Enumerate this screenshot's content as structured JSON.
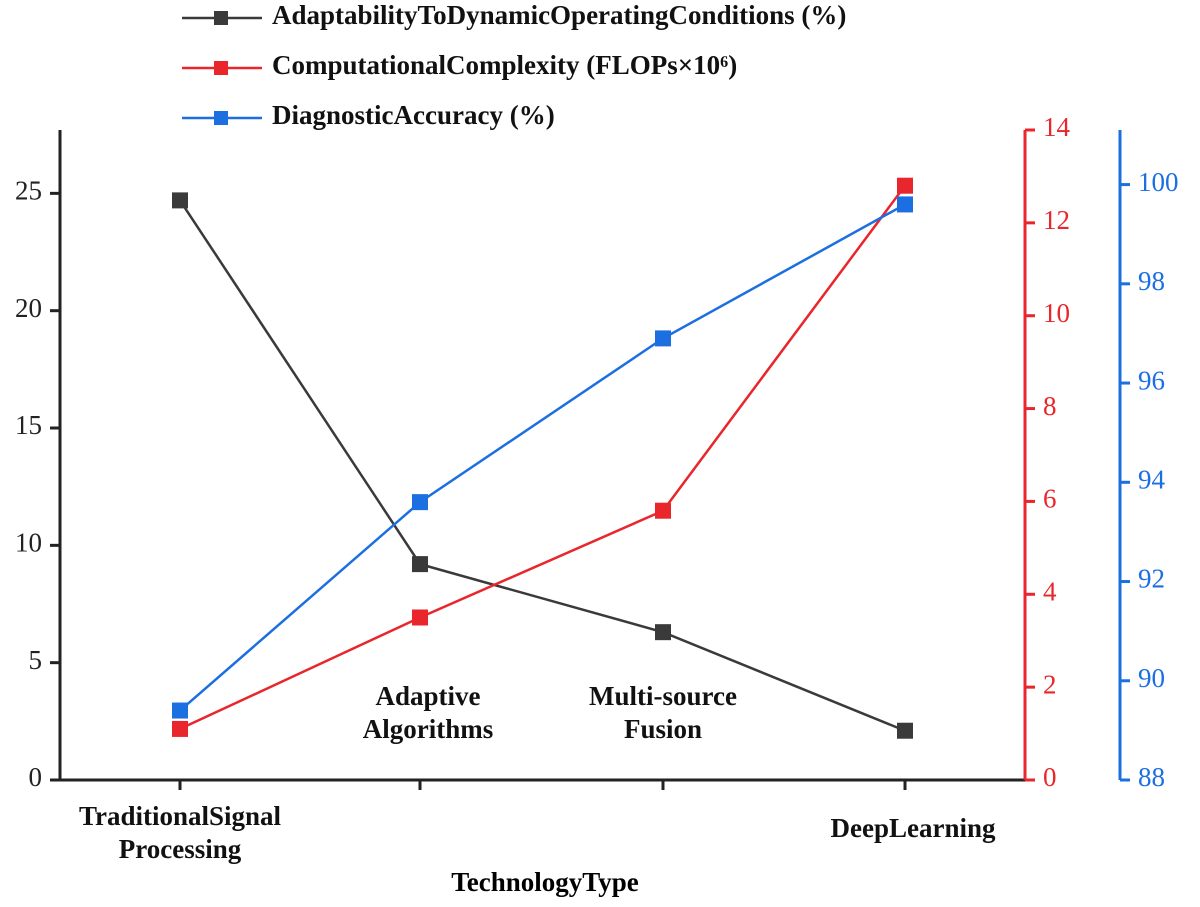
{
  "chart_data": {
    "type": "line",
    "x_label": "TechnologyType",
    "categories": [
      "TraditionalSignal Processing",
      "Adaptive Algorithms",
      "Multi-source Fusion",
      "DeepLearning"
    ],
    "series": [
      {
        "name": "AdaptabilityToDynamicOperatingConditions (%)",
        "color": "#3a3a3a",
        "values": [
          24.7,
          9.2,
          6.3,
          2.1
        ]
      },
      {
        "name": "ComputationalComplexity (FLOPs×10⁶)",
        "color": "#e8262b",
        "values": [
          1.1,
          3.5,
          5.8,
          12.8
        ],
        "axis": "y2"
      },
      {
        "name": "DiagnosticAccuracy (%)",
        "color": "#1c6fe0",
        "values": [
          89.4,
          93.6,
          96.9,
          99.6
        ],
        "axis": "y3"
      }
    ],
    "ylim": [
      0,
      27.7
    ],
    "yticks": [
      0,
      5,
      10,
      15,
      20,
      25
    ],
    "ycolor": "#222222",
    "y2lim": [
      0,
      14
    ],
    "y2ticks": [
      0,
      2,
      4,
      6,
      8,
      10,
      12,
      14
    ],
    "y2color": "#e8262b",
    "y3lim": [
      88,
      101.1
    ],
    "y3ticks": [
      88,
      90,
      92,
      94,
      96,
      98,
      100
    ],
    "y3color": "#1c6fe0"
  }
}
